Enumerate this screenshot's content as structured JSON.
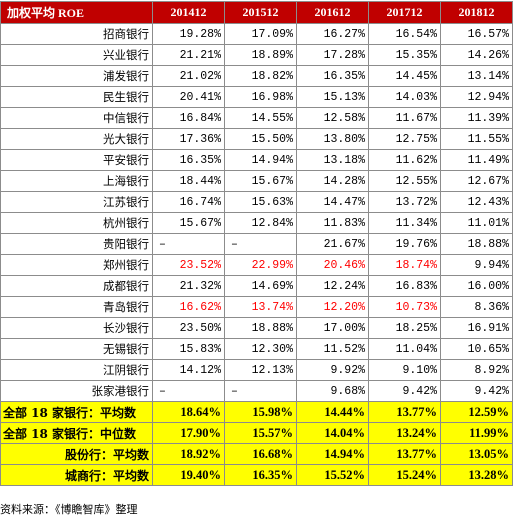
{
  "header": [
    "加权平均 ROE",
    "201412",
    "201512",
    "201612",
    "201712",
    "201812"
  ],
  "rows": [
    {
      "name": "招商银行",
      "values": [
        "19.28%",
        "17.09%",
        "16.27%",
        "16.54%",
        "16.57%"
      ]
    },
    {
      "name": "兴业银行",
      "values": [
        "21.21%",
        "18.89%",
        "17.28%",
        "15.35%",
        "14.26%"
      ]
    },
    {
      "name": "浦发银行",
      "values": [
        "21.02%",
        "18.82%",
        "16.35%",
        "14.45%",
        "13.14%"
      ]
    },
    {
      "name": "民生银行",
      "values": [
        "20.41%",
        "16.98%",
        "15.13%",
        "14.03%",
        "12.94%"
      ]
    },
    {
      "name": "中信银行",
      "values": [
        "16.84%",
        "14.55%",
        "12.58%",
        "11.67%",
        "11.39%"
      ]
    },
    {
      "name": "光大银行",
      "values": [
        "17.36%",
        "15.50%",
        "13.80%",
        "12.75%",
        "11.55%"
      ]
    },
    {
      "name": "平安银行",
      "values": [
        "16.35%",
        "14.94%",
        "13.18%",
        "11.62%",
        "11.49%"
      ]
    },
    {
      "name": "上海银行",
      "values": [
        "18.44%",
        "15.67%",
        "14.28%",
        "12.55%",
        "12.67%"
      ]
    },
    {
      "name": "江苏银行",
      "values": [
        "16.74%",
        "15.63%",
        "14.47%",
        "13.72%",
        "12.43%"
      ]
    },
    {
      "name": "杭州银行",
      "values": [
        "15.67%",
        "12.84%",
        "11.83%",
        "11.34%",
        "11.01%"
      ]
    },
    {
      "name": "贵阳银行",
      "values": [
        "–",
        "–",
        "21.67%",
        "19.76%",
        "18.88%"
      ]
    },
    {
      "name": "郑州银行",
      "values": [
        "23.52%",
        "22.99%",
        "20.46%",
        "18.74%",
        "9.94%"
      ],
      "red_count": 4
    },
    {
      "name": "成都银行",
      "values": [
        "21.32%",
        "14.69%",
        "12.24%",
        "16.83%",
        "16.00%"
      ]
    },
    {
      "name": "青岛银行",
      "values": [
        "16.62%",
        "13.74%",
        "12.20%",
        "10.73%",
        "8.36%"
      ],
      "red_count": 4
    },
    {
      "name": "长沙银行",
      "values": [
        "23.50%",
        "18.88%",
        "17.00%",
        "18.25%",
        "16.91%"
      ]
    },
    {
      "name": "无锡银行",
      "values": [
        "15.83%",
        "12.30%",
        "11.52%",
        "11.04%",
        "10.65%"
      ]
    },
    {
      "name": "江阴银行",
      "values": [
        "14.12%",
        "12.13%",
        "9.92%",
        "9.10%",
        "8.92%"
      ]
    },
    {
      "name": "张家港银行",
      "values": [
        "–",
        "–",
        "9.68%",
        "9.42%",
        "9.42%"
      ]
    }
  ],
  "summary": [
    {
      "name": "全部 18 家银行：平均数",
      "values": [
        "18.64%",
        "15.98%",
        "14.44%",
        "13.77%",
        "12.59%"
      ],
      "align": "left"
    },
    {
      "name": "全部 18 家银行：中位数",
      "values": [
        "17.90%",
        "15.57%",
        "14.04%",
        "13.24%",
        "11.99%"
      ],
      "align": "left"
    },
    {
      "name": "股份行：平均数",
      "values": [
        "18.92%",
        "16.68%",
        "14.94%",
        "13.77%",
        "13.05%"
      ],
      "align": "right"
    },
    {
      "name": "城商行：平均数",
      "values": [
        "19.40%",
        "16.35%",
        "15.52%",
        "15.24%",
        "13.28%"
      ],
      "align": "right"
    }
  ],
  "source": "资料来源：《博瞻智库》整理",
  "colors": {
    "header_bg": "#c00000",
    "summary_bg": "#ffff00",
    "highlight_text": "#ff0000"
  }
}
